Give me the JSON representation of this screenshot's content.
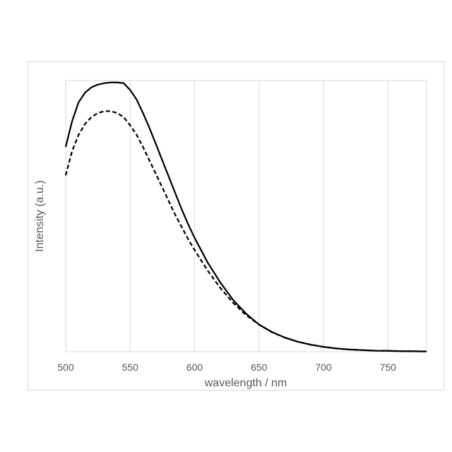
{
  "chart_data": {
    "type": "line",
    "title": "",
    "xlabel": "wavelength / nm",
    "ylabel": "Intensity (a.u.)",
    "xlim": [
      500,
      780
    ],
    "ylim": [
      0,
      1
    ],
    "xticks": [
      "500",
      "550",
      "600",
      "650",
      "700",
      "750"
    ],
    "yticks_shown": false,
    "grid": "vertical",
    "legend": "none",
    "series": [
      {
        "style": "solid",
        "color": "#000000",
        "x": [
          500,
          505,
          510,
          515,
          520,
          525,
          530,
          535,
          540,
          545,
          550,
          555,
          560,
          565,
          570,
          575,
          580,
          585,
          590,
          595,
          600,
          610,
          620,
          630,
          640,
          650,
          660,
          670,
          680,
          690,
          700,
          710,
          720,
          730,
          740,
          750,
          760,
          770,
          780
        ],
        "y": [
          0.755,
          0.85,
          0.92,
          0.955,
          0.975,
          0.985,
          0.99,
          0.993,
          0.993,
          0.99,
          0.965,
          0.93,
          0.88,
          0.825,
          0.765,
          0.705,
          0.645,
          0.585,
          0.525,
          0.47,
          0.42,
          0.33,
          0.255,
          0.19,
          0.14,
          0.1,
          0.073,
          0.052,
          0.037,
          0.026,
          0.018,
          0.012,
          0.008,
          0.006,
          0.004,
          0.003,
          0.002,
          0.0015,
          0.001
        ]
      },
      {
        "style": "dashed",
        "color": "#000000",
        "x": [
          500,
          505,
          510,
          515,
          520,
          525,
          530,
          535,
          540,
          545,
          550,
          555,
          560,
          565,
          570,
          575,
          580,
          585,
          590,
          595,
          600,
          610,
          620,
          630,
          640,
          650,
          660,
          670,
          680,
          690,
          700,
          710,
          720,
          730,
          740,
          750,
          760,
          770,
          780
        ],
        "y": [
          0.65,
          0.74,
          0.8,
          0.84,
          0.865,
          0.88,
          0.887,
          0.887,
          0.88,
          0.865,
          0.835,
          0.8,
          0.755,
          0.705,
          0.655,
          0.605,
          0.555,
          0.505,
          0.46,
          0.415,
          0.375,
          0.3,
          0.235,
          0.18,
          0.135,
          0.1,
          0.072,
          0.052,
          0.037,
          0.026,
          0.018,
          0.012,
          0.008,
          0.006,
          0.004,
          0.003,
          0.002,
          0.0015,
          0.001
        ]
      }
    ]
  }
}
